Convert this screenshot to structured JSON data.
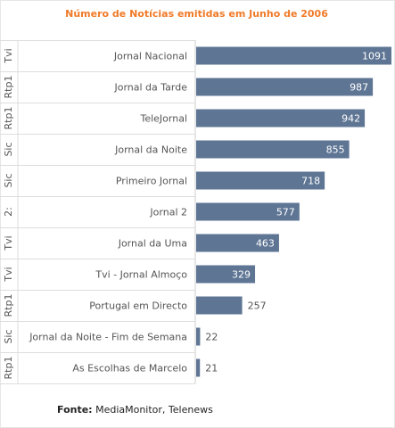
{
  "chart_data": {
    "type": "bar",
    "orientation": "horizontal",
    "title": "Número de Notícias emitidas em Junho de 2006",
    "group_header": "",
    "categories": [
      "Jornal Nacional",
      "Jornal da Tarde",
      "TeleJornal",
      "Jornal da Noite",
      "Primeiro Jornal",
      "Jornal 2",
      "Jornal da Uma",
      "Tvi - Jornal Almoço",
      "Portugal em Directo",
      "Jornal da Noite - Fim de Semana",
      "As Escolhas de Marcelo"
    ],
    "channels": [
      "Tvi",
      "Rtp1",
      "Rtp1",
      "Sic",
      "Sic",
      "2:",
      "Tvi",
      "Tvi",
      "Rtp1",
      "Sic",
      "Rtp1"
    ],
    "values": [
      1091,
      987,
      942,
      855,
      718,
      577,
      463,
      329,
      257,
      22,
      21
    ],
    "xlim": [
      0,
      1091
    ],
    "grid": false,
    "legend": "none",
    "colors": {
      "bar": "#5e7594",
      "title": "#f07a28",
      "label": "#555555"
    }
  },
  "footer": {
    "source_label": "Fonte:",
    "source_text": " MediaMonitor, Telenews"
  }
}
